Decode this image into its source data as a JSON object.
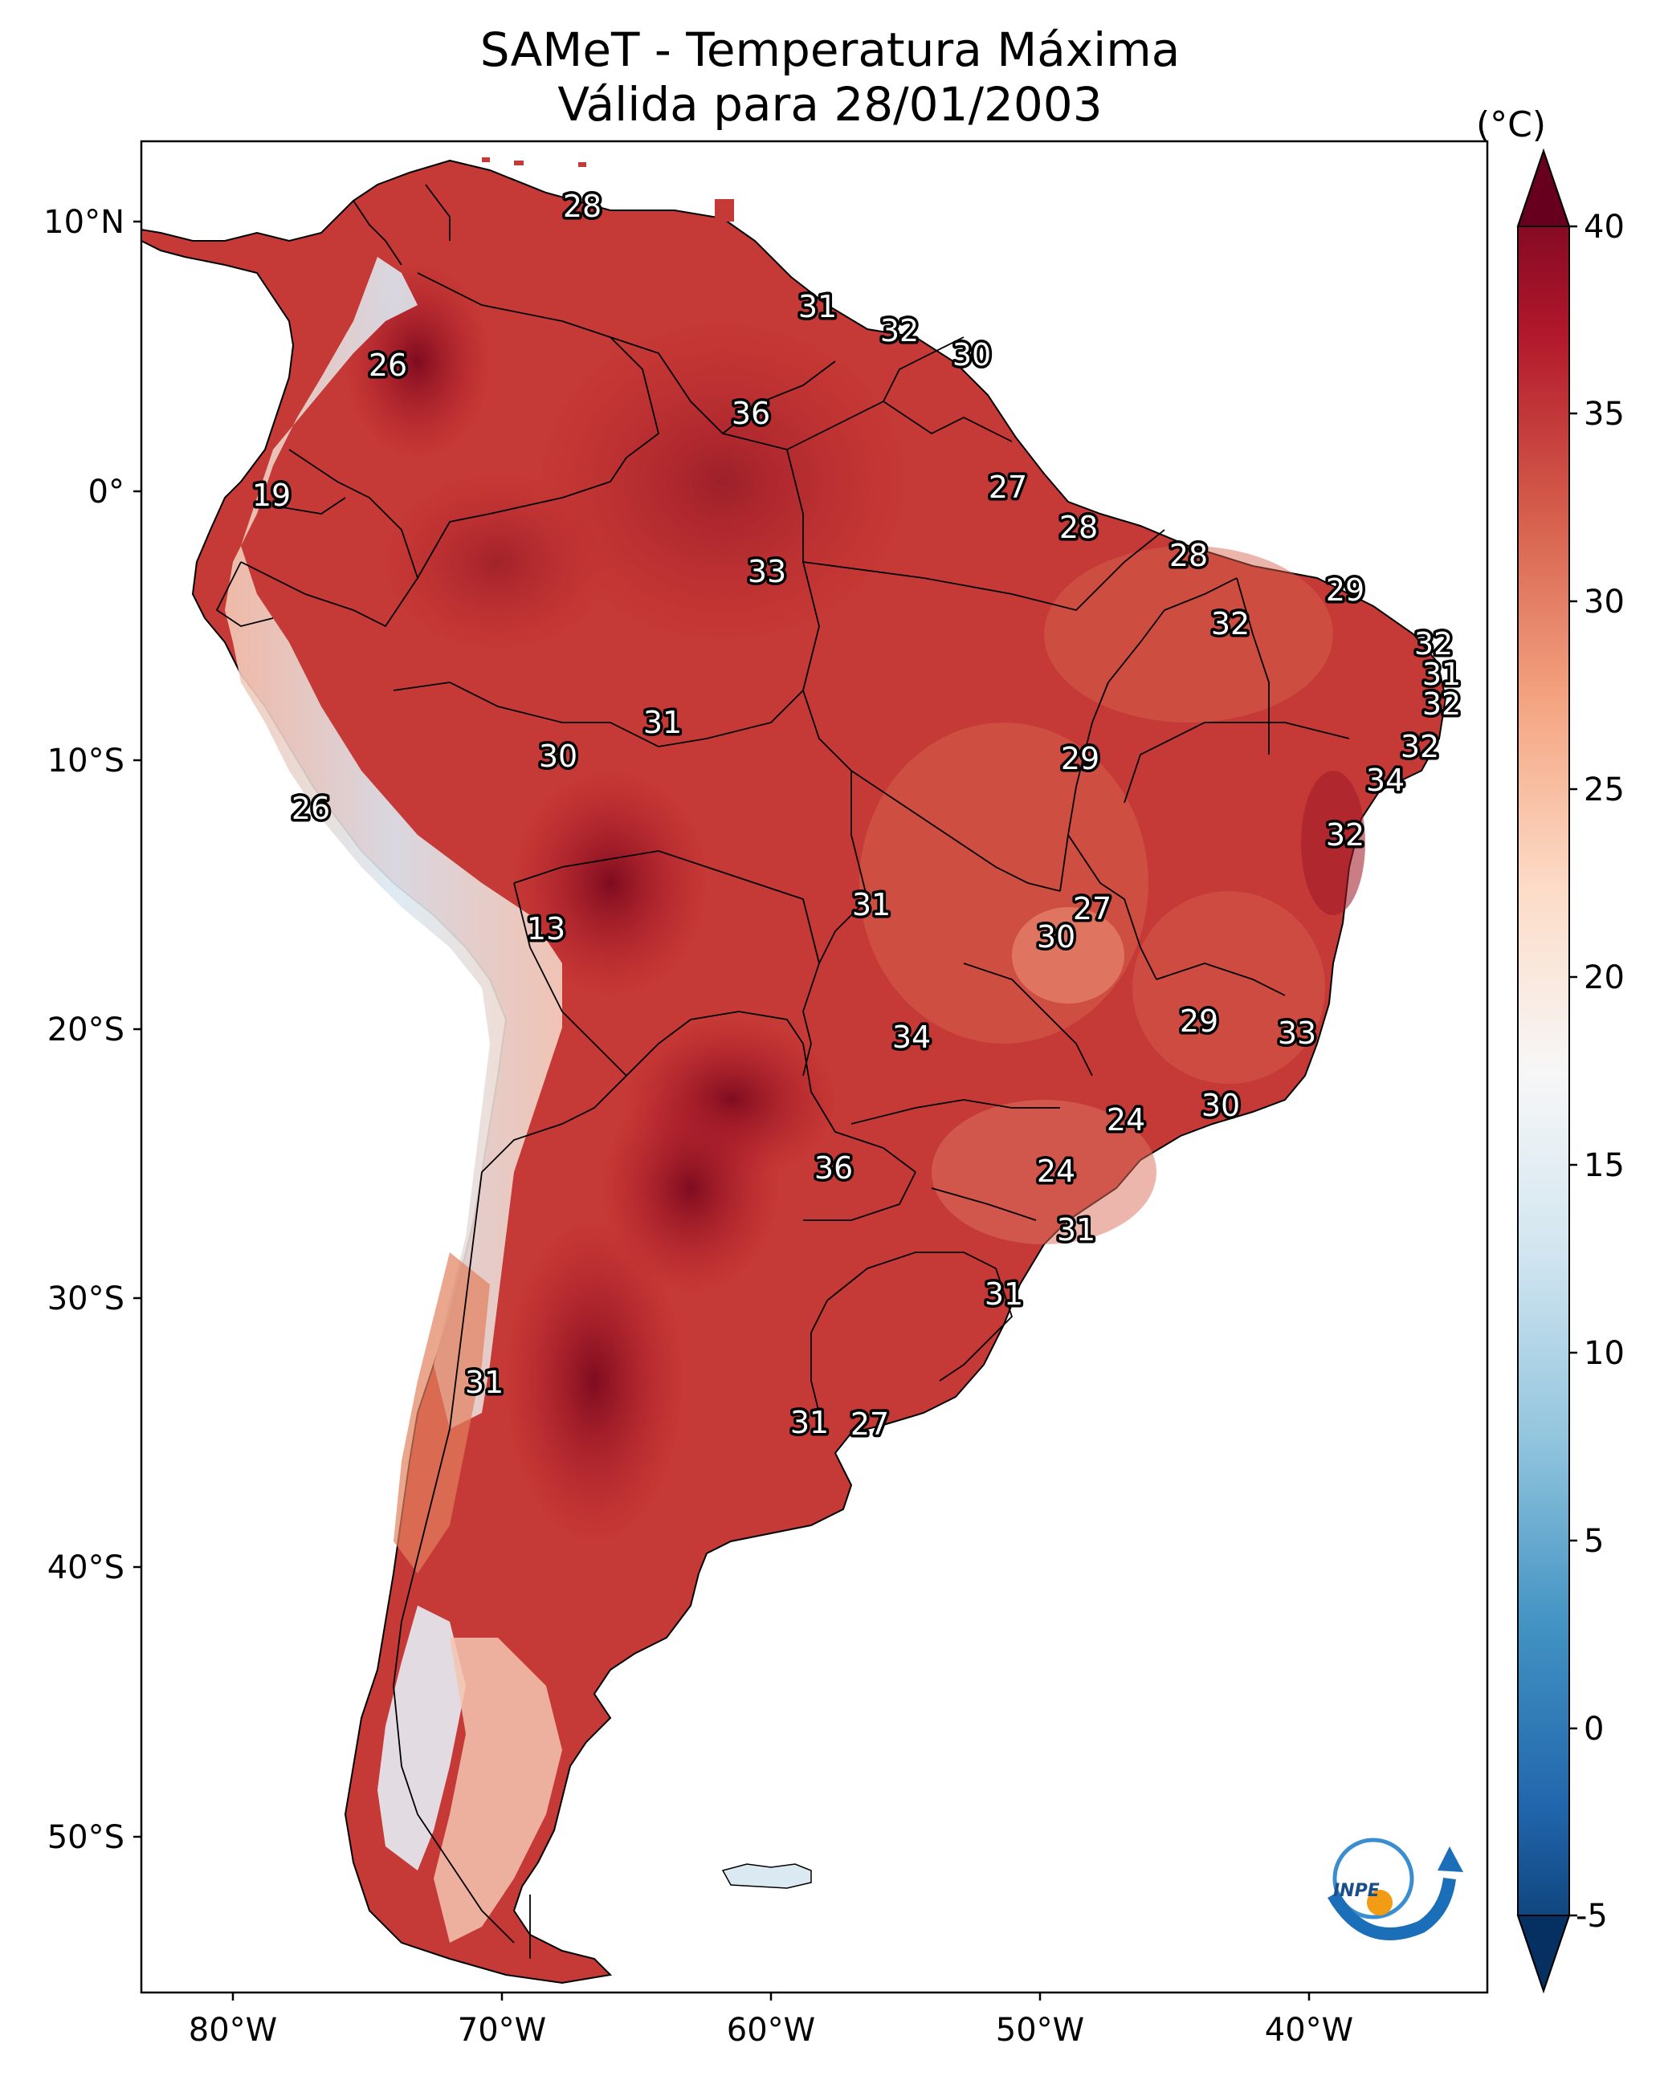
{
  "title": {
    "line1": "SAMeT - Temperatura Máxima",
    "line2": "Válida para 28/01/2003"
  },
  "lat_ticks": [
    "10°N",
    "0°",
    "10°S",
    "20°S",
    "30°S",
    "40°S",
    "50°S"
  ],
  "lon_ticks": [
    "80°W",
    "70°W",
    "60°W",
    "50°W",
    "40°W"
  ],
  "colorbar": {
    "unit": "(°C)",
    "ticks": [
      "40",
      "35",
      "30",
      "25",
      "20",
      "15",
      "10",
      "5",
      "0",
      "-5"
    ],
    "colors": [
      "#67001f",
      "#b2182b",
      "#d6604d",
      "#f4a582",
      "#fddbc7",
      "#f7f7f7",
      "#d1e5f0",
      "#92c5de",
      "#4393c3",
      "#2166ac",
      "#053061"
    ]
  },
  "contour_labels": [
    "28",
    "26",
    "31",
    "32",
    "30",
    "36",
    "19",
    "27",
    "28",
    "33",
    "28",
    "29",
    "32",
    "32",
    "31",
    "32",
    "31",
    "30",
    "29",
    "32",
    "26",
    "34",
    "32",
    "13",
    "31",
    "27",
    "30",
    "29",
    "33",
    "34",
    "30",
    "24",
    "36",
    "24",
    "31",
    "31",
    "31",
    "31",
    "27"
  ],
  "logo": "INPE"
}
